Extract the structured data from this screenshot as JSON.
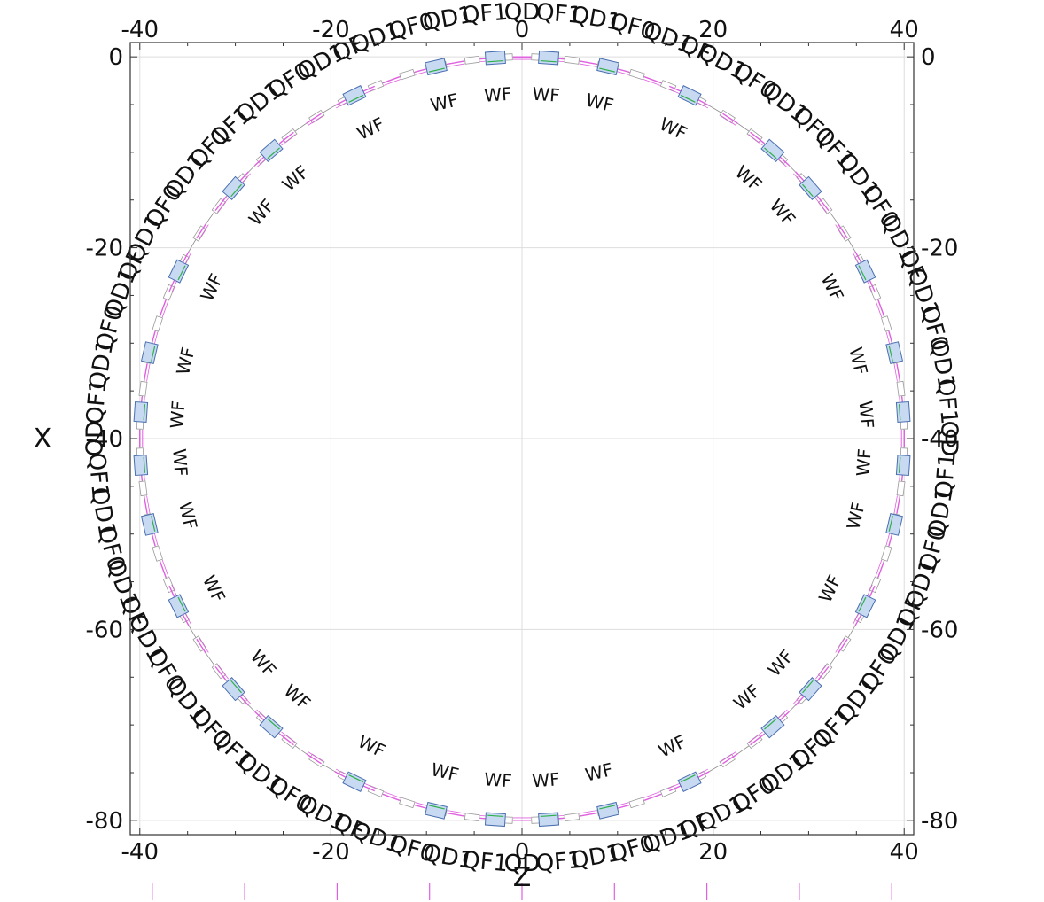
{
  "chart_data": {
    "type": "scatter",
    "title": "",
    "xlabel": "Z",
    "ylabel": "X",
    "xlim": [
      -41,
      41
    ],
    "ylim": [
      -81.5,
      1.5
    ],
    "xticks": [
      -40,
      -20,
      0,
      20,
      40
    ],
    "yticks": [
      0,
      -20,
      -40,
      -60,
      -80
    ],
    "grid": true,
    "ring": {
      "center_z": 0,
      "center_x": -40,
      "radius": 40
    },
    "quadrupole_sequence": [
      "QD",
      "QF1",
      "QD1",
      "QF0",
      "QD1",
      "QF",
      "QD1",
      "QF0",
      "QD1",
      "QF1"
    ],
    "quadrupole_angles_deg": [
      0,
      5,
      10,
      15,
      20,
      24,
      28,
      33,
      38,
      43
    ],
    "wf_label": "WF",
    "wf_angles_deg": [
      4,
      13,
      26,
      41
    ],
    "colors": {
      "frame": "#333333",
      "grid": "#dddddd",
      "ring_line": "#888888",
      "quad_marker": "#e060e0",
      "wf_fill": "#c8daf2",
      "wf_stroke": "#4a6fb0",
      "wf_accent": "#2fb04a",
      "bend": "#999999"
    }
  }
}
